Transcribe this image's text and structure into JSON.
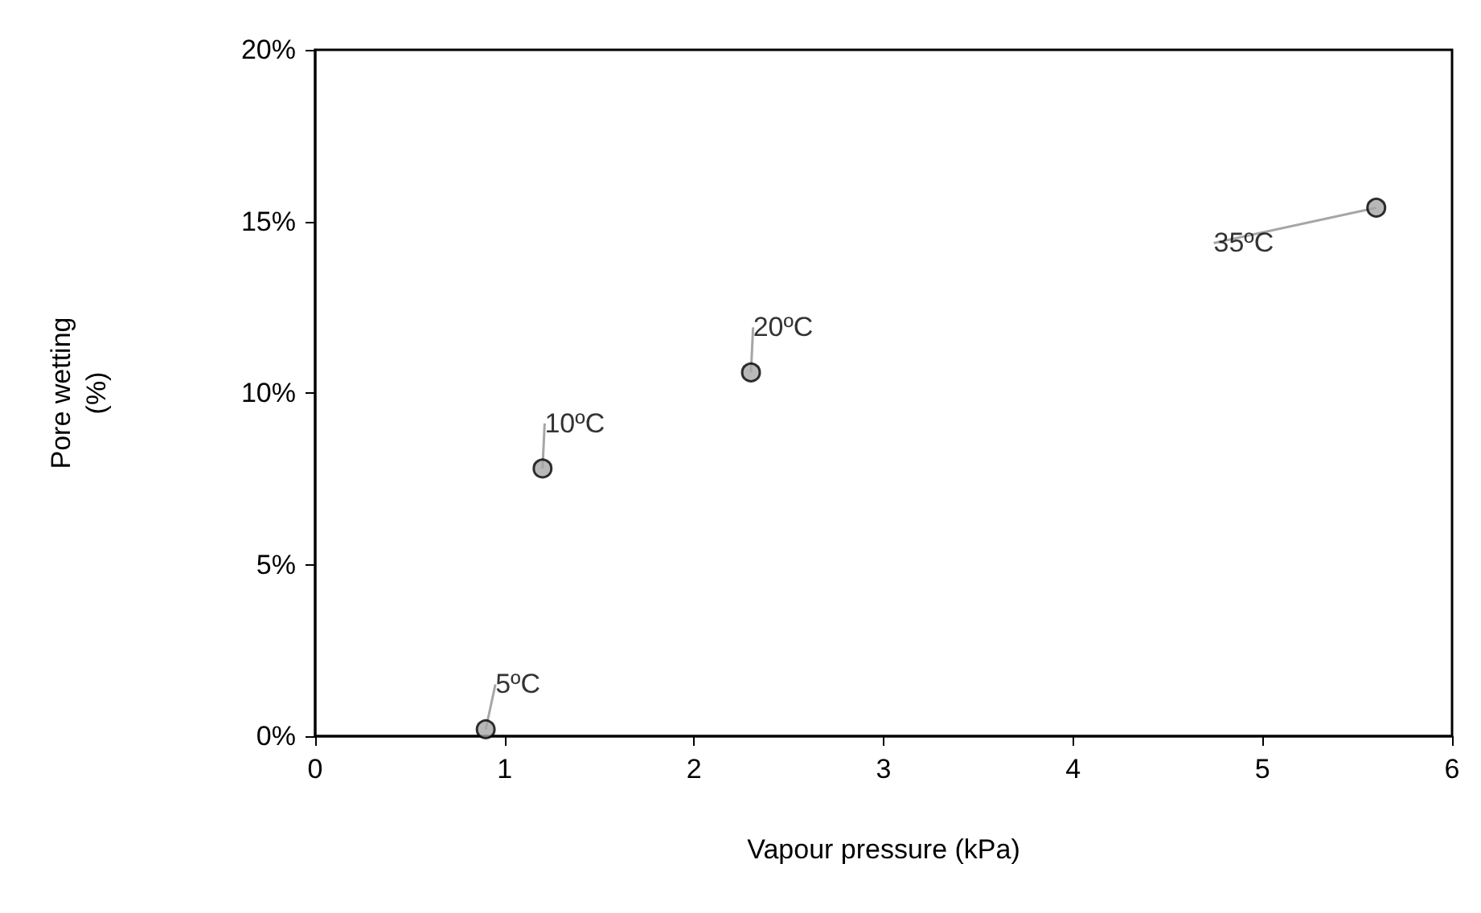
{
  "chart_data": {
    "type": "scatter",
    "xlabel": "Vapour pressure (kPa)",
    "ylabel": "Pore wetting (%)",
    "x": [
      0.9,
      1.2,
      2.3,
      5.6
    ],
    "values": [
      0.2,
      7.8,
      10.6,
      15.4
    ],
    "color": "#a6a6a6",
    "marker": "circle",
    "xlim": [
      0,
      6
    ],
    "xticks": [
      0,
      1,
      2,
      3,
      4,
      5,
      6
    ],
    "ylim": [
      0,
      20
    ],
    "yticks": [
      {
        "value": 0,
        "label": "0%"
      },
      {
        "value": 5,
        "label": "5%"
      },
      {
        "value": 10,
        "label": "10%"
      },
      {
        "value": 15,
        "label": "15%"
      },
      {
        "value": 20,
        "label": "20%"
      }
    ],
    "annotations": [
      {
        "text": "5ºC",
        "x": 0.9,
        "y": 0.2
      },
      {
        "text": "10ºC",
        "x": 1.2,
        "y": 7.8
      },
      {
        "text": "20ºC",
        "x": 2.3,
        "y": 10.6
      },
      {
        "text": "35ºC",
        "x": 5.6,
        "y": 15.4
      }
    ]
  }
}
